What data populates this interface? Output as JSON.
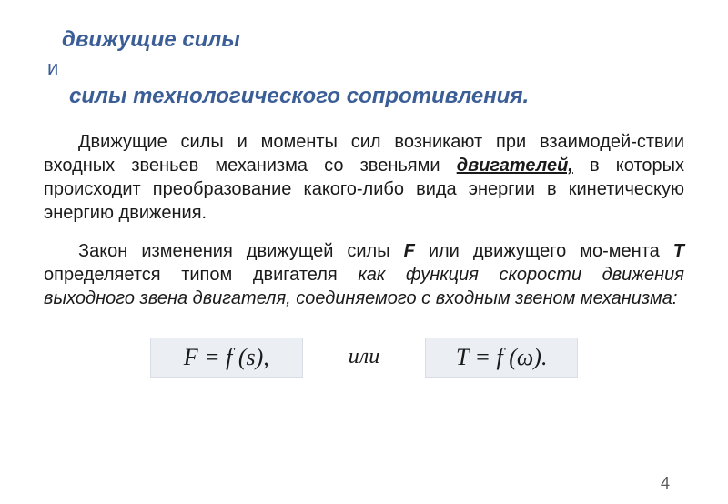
{
  "colors": {
    "heading": "#3b5e97",
    "text": "#1a1a1a",
    "formula_bg": "#ebeff4",
    "formula_border": "#d8dde6",
    "background": "#ffffff"
  },
  "heading": {
    "line1": "движущие силы",
    "connector": "и",
    "line2": "силы технологического сопротивления."
  },
  "para1": {
    "a": "Движущие силы и моменты сил возникают при взаимодей-ствии входных звеньев механизма со звеньями ",
    "b": "двигателей,",
    "c": " в которых происходит преобразование какого-либо вида энергии в кинетическую энергию движения."
  },
  "para2": {
    "a": "Закон изменения движущей силы ",
    "f": "F",
    "b": " или движущего мо-мента ",
    "t": "Т",
    "c": " определяется типом двигателя ",
    "d": "как функция скорости движения выходного звена двигателя, соединяемого с входным звеном механизма:"
  },
  "formula": {
    "left": "F = f (s),",
    "sep": "или",
    "right": "T = f (ω)."
  },
  "fonts": {
    "body_size": 20,
    "heading_size": 24,
    "formula_size": 26
  },
  "page": "4"
}
